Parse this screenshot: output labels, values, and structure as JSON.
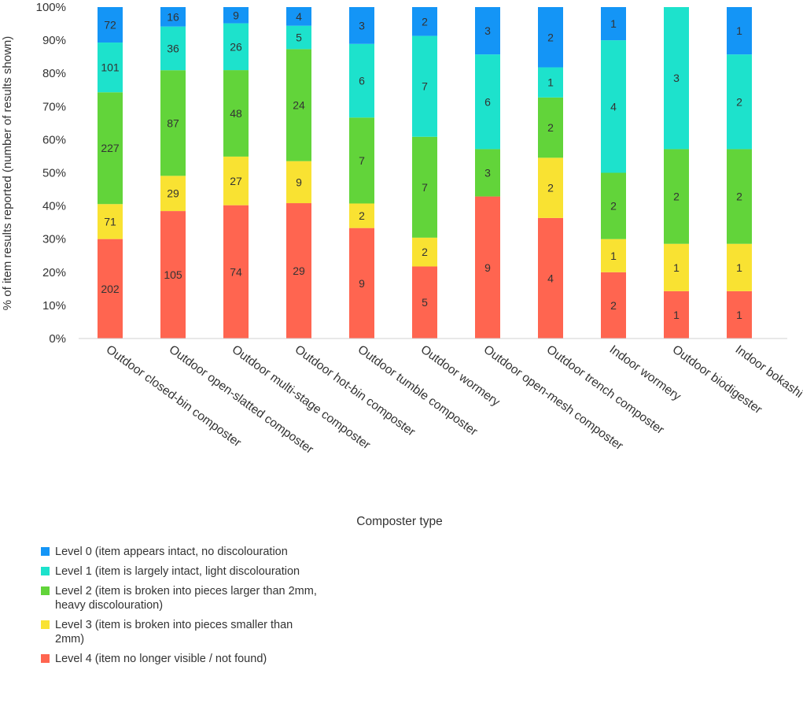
{
  "chart_data": {
    "type": "bar",
    "stacked": true,
    "normalized": true,
    "title": "",
    "xlabel": "Composter type",
    "ylabel": "% of item results reported (number of results shown)",
    "ylim": [
      0,
      100
    ],
    "yticks": [
      "0%",
      "10%",
      "20%",
      "30%",
      "40%",
      "50%",
      "60%",
      "70%",
      "80%",
      "90%",
      "100%"
    ],
    "grid": false,
    "legend_position": "bottom-left",
    "categories": [
      "Outdoor closed-bin composter",
      "Outdoor open-slatted composter",
      "Outdoor multi-stage composter",
      "Outdoor hot-bin composter",
      "Outdoor tumble composter",
      "Outdoor wormery",
      "Outdoor open-mesh composter",
      "Outdoor trench composter",
      "Indoor wormery",
      "Outdoor biodigester",
      "Indoor bokashi"
    ],
    "series": [
      {
        "name": "Level 4 (item no longer visible / not found)",
        "color": "#FF6550",
        "values": [
          202,
          105,
          74,
          29,
          9,
          5,
          9,
          4,
          2,
          1,
          1
        ]
      },
      {
        "name": "Level 3 (item is broken into pieces smaller than 2mm)",
        "color": "#F9E232",
        "values": [
          71,
          29,
          27,
          9,
          2,
          2,
          0,
          2,
          1,
          1,
          1
        ]
      },
      {
        "name": "Level 2 (item is broken into pieces larger than 2mm, heavy discolouration)",
        "color": "#62D43A",
        "values": [
          227,
          87,
          48,
          24,
          7,
          7,
          3,
          2,
          2,
          2,
          2
        ]
      },
      {
        "name": "Level 1 (item is largely intact, light discolouration",
        "color": "#1DE2CC",
        "values": [
          101,
          36,
          26,
          5,
          6,
          7,
          6,
          1,
          4,
          3,
          2
        ]
      },
      {
        "name": "Level 0 (item appears intact, no discolouration",
        "color": "#1495F6",
        "values": [
          72,
          16,
          9,
          4,
          3,
          2,
          3,
          2,
          1,
          0,
          1
        ]
      }
    ]
  },
  "legend": {
    "items": [
      {
        "label": "Level 0 (item appears intact, no discolouration",
        "color": "#1495F6"
      },
      {
        "label": "Level 1 (item is largely intact, light discolouration",
        "color": "#1DE2CC"
      },
      {
        "label": "Level 2 (item is broken into pieces larger than 2mm, heavy discolouration)",
        "color": "#62D43A"
      },
      {
        "label": "Level 3 (item is broken into pieces smaller than 2mm)",
        "color": "#F9E232"
      },
      {
        "label": "Level 4 (item no longer visible / not found)",
        "color": "#FF6550"
      }
    ]
  }
}
